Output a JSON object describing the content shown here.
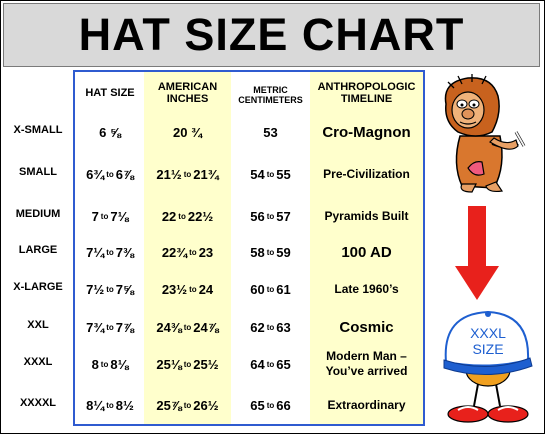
{
  "title": "HAT SIZE CHART",
  "headers": {
    "hat_size": "HAT SIZE",
    "american_1": "AMERICAN",
    "american_2": "INCHES",
    "metric_1": "METRIC",
    "metric_2": "CENTIMETERS",
    "anthro_1": "ANTHROPOLOGIC",
    "anthro_2": "TIMELINE"
  },
  "rows": [
    {
      "label": "X-SMALL",
      "hat": "6 ⅝",
      "inches": "20 ¾",
      "cm": "53",
      "timeline": "Cro-Magnon"
    },
    {
      "label": "SMALL",
      "hat_a": "6¾",
      "hat_b": "6⅞",
      "in_a": "21½",
      "in_b": "21¾",
      "cm_a": "54",
      "cm_b": "55",
      "timeline": "Pre-Civilization"
    },
    {
      "label": "MEDIUM",
      "hat_a": "7",
      "hat_b": "7⅛",
      "in_a": "22",
      "in_b": "22½",
      "cm_a": "56",
      "cm_b": "57",
      "timeline": "Pyramids Built"
    },
    {
      "label": "LARGE",
      "hat_a": "7¼",
      "hat_b": "7⅜",
      "in_a": "22¾",
      "in_b": "23",
      "cm_a": "58",
      "cm_b": "59",
      "timeline": "100 AD"
    },
    {
      "label": "X-LARGE",
      "hat_a": "7½",
      "hat_b": "7⅝",
      "in_a": "23½",
      "in_b": "24",
      "cm_a": "60",
      "cm_b": "61",
      "timeline": "Late 1960’s"
    },
    {
      "label": "XXL",
      "hat_a": "7¾",
      "hat_b": "7⅞",
      "in_a": "24⅜",
      "in_b": "24⅞",
      "cm_a": "62",
      "cm_b": "63",
      "timeline": "Cosmic"
    },
    {
      "label": "XXXL",
      "hat_a": "8",
      "hat_b": "8⅛",
      "in_a": "25⅛",
      "in_b": "25½",
      "cm_a": "64",
      "cm_b": "65",
      "timeline_1": "Modern Man –",
      "timeline_2": "You’ve arrived"
    },
    {
      "label": "XXXXL",
      "hat_a": "8¼",
      "hat_b": "8½",
      "in_a": "25⅞",
      "in_b": "26½",
      "cm_a": "65",
      "cm_b": "66",
      "timeline": "Extraordinary"
    }
  ],
  "to_word": "to",
  "cap_text_1": "XXXL",
  "cap_text_2": "SIZE",
  "colors": {
    "accent_border": "#2f5bd0",
    "highlight": "#ffffcc",
    "arrow": "#e8211c"
  }
}
